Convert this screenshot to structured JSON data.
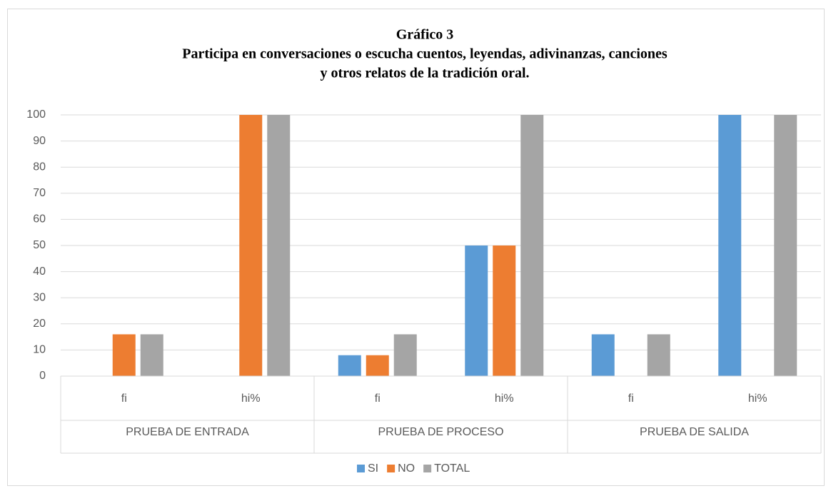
{
  "chart_data": {
    "type": "bar",
    "title": [
      "Gráfico 3",
      "Participa en conversaciones o escucha cuentos, leyendas, adivinanzas, canciones",
      "y otros relatos de la tradición oral."
    ],
    "categories": [
      "fi",
      "hi%",
      "fi",
      "hi%",
      "fi",
      "hi%"
    ],
    "groups": [
      "PRUEBA DE ENTRADA",
      "PRUEBA DE PROCESO",
      "PRUEBA DE SALIDA"
    ],
    "series": [
      {
        "name": "SI",
        "color": "#5b9bd5",
        "values": [
          0,
          0,
          8,
          50,
          16,
          100
        ]
      },
      {
        "name": "NO",
        "color": "#ed7d31",
        "values": [
          16,
          100,
          8,
          50,
          0,
          0
        ]
      },
      {
        "name": "TOTAL",
        "color": "#a5a5a5",
        "values": [
          16,
          100,
          16,
          100,
          16,
          100
        ]
      }
    ],
    "ylim": [
      0,
      100
    ],
    "yticks": [
      0,
      10,
      20,
      30,
      40,
      50,
      60,
      70,
      80,
      90,
      100
    ],
    "grid": true,
    "legend": "bottom"
  }
}
